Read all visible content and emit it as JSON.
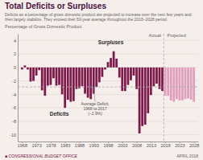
{
  "chart_data": {
    "type": "bar",
    "title": "Total Deficits or Surpluses",
    "subtitle": "Deficits as a percentage of gross domestic product are projected to increase over the next few years and\nthen largely stabilize. They exceed their 50-year average throughout the 2018–2028 period.",
    "ylabel": "Percentage of Gross Domestic Product",
    "x": [
      1968,
      1969,
      1970,
      1971,
      1972,
      1973,
      1974,
      1975,
      1976,
      1977,
      1978,
      1979,
      1980,
      1981,
      1982,
      1983,
      1984,
      1985,
      1986,
      1987,
      1988,
      1989,
      1990,
      1991,
      1992,
      1993,
      1994,
      1995,
      1996,
      1997,
      1998,
      1999,
      2000,
      2001,
      2002,
      2003,
      2004,
      2005,
      2006,
      2007,
      2008,
      2009,
      2010,
      2011,
      2012,
      2013,
      2014,
      2015,
      2016,
      2017,
      2018,
      2019,
      2020,
      2021,
      2022,
      2023,
      2024,
      2025,
      2026,
      2027,
      2028
    ],
    "values": [
      -0.3,
      0.3,
      -0.3,
      -2.1,
      -2.0,
      -1.2,
      -0.4,
      -3.4,
      -4.2,
      -2.7,
      -2.6,
      -1.6,
      -2.7,
      -2.6,
      -4.0,
      -6.0,
      -4.8,
      -5.1,
      -5.0,
      -3.2,
      -3.1,
      -2.8,
      -3.9,
      -4.5,
      -4.7,
      -3.9,
      -2.9,
      -2.2,
      -1.4,
      -0.3,
      0.8,
      1.4,
      2.4,
      1.3,
      -1.5,
      -3.5,
      -3.5,
      -2.6,
      -1.9,
      -1.2,
      -3.2,
      -9.8,
      -8.7,
      -8.5,
      -6.8,
      -4.1,
      -2.8,
      -2.4,
      -3.2,
      -3.5,
      -4.2,
      -4.2,
      -4.9,
      -5.1,
      -4.7,
      -4.9,
      -4.9,
      -4.7,
      -4.6,
      -4.8,
      -5.1
    ],
    "colors": [
      "#7b1a4b",
      "#7b1a4b",
      "#7b1a4b",
      "#7b1a4b",
      "#7b1a4b",
      "#7b1a4b",
      "#7b1a4b",
      "#7b1a4b",
      "#7b1a4b",
      "#7b1a4b",
      "#7b1a4b",
      "#7b1a4b",
      "#7b1a4b",
      "#7b1a4b",
      "#7b1a4b",
      "#7b1a4b",
      "#7b1a4b",
      "#7b1a4b",
      "#7b1a4b",
      "#7b1a4b",
      "#7b1a4b",
      "#7b1a4b",
      "#7b1a4b",
      "#7b1a4b",
      "#7b1a4b",
      "#7b1a4b",
      "#7b1a4b",
      "#7b1a4b",
      "#7b1a4b",
      "#7b1a4b",
      "#7b1a4b",
      "#7b1a4b",
      "#7b1a4b",
      "#7b1a4b",
      "#7b1a4b",
      "#7b1a4b",
      "#7b1a4b",
      "#7b1a4b",
      "#7b1a4b",
      "#7b1a4b",
      "#7b1a4b",
      "#7b1a4b",
      "#7b1a4b",
      "#7b1a4b",
      "#7b1a4b",
      "#7b1a4b",
      "#7b1a4b",
      "#7b1a4b",
      "#7b1a4b",
      "#7b1a4b",
      "#e0a0bc",
      "#e0a0bc",
      "#e0a0bc",
      "#e0a0bc",
      "#e0a0bc",
      "#e0a0bc",
      "#e0a0bc",
      "#e0a0bc",
      "#e0a0bc",
      "#e0a0bc",
      "#e0a0bc"
    ],
    "average": -2.9,
    "projected_start": 2018,
    "xlim": [
      1966.5,
      2029.5
    ],
    "xticks": [
      1968,
      1973,
      1978,
      1983,
      1988,
      1993,
      1998,
      2003,
      2008,
      2013,
      2018,
      2023,
      2028
    ],
    "ylim": [
      -11,
      5
    ],
    "yticks": [
      -10,
      -8,
      -6,
      -4,
      -2,
      0,
      2,
      4
    ],
    "grid": true,
    "annotations": [
      "Deficits",
      "Surpluses",
      "Average Deficit,\n1968 to 2017\n(−2.9%)",
      "Actual",
      "Projected"
    ],
    "footer_left": "■ CONGRESSIONAL BUDGET OFFICE",
    "footer_right": "APRIL 2018"
  }
}
